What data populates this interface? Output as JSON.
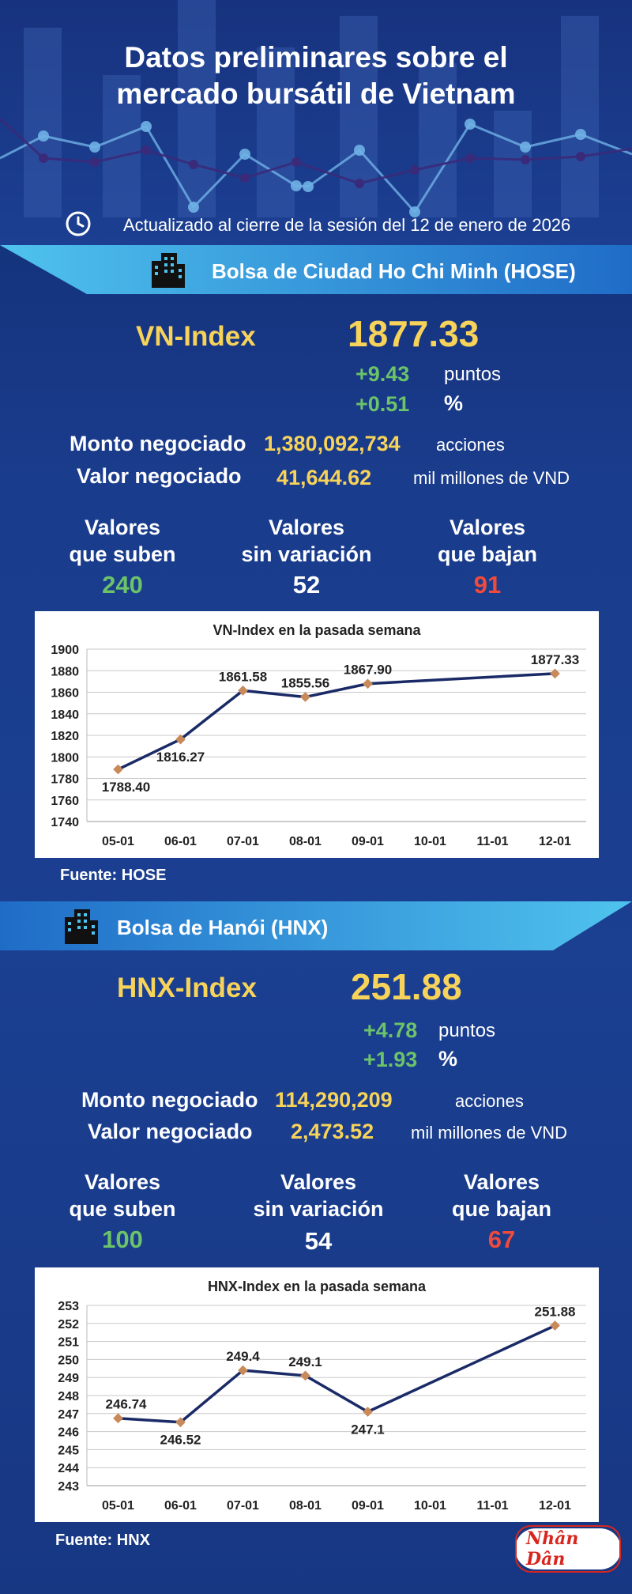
{
  "header": {
    "title_line1": "Datos preliminares sobre el",
    "title_line2": "mercado bursátil de Vietnam",
    "updated": "Actualizado al cierre de la sesión del 12 de enero de 2026"
  },
  "hose": {
    "banner": "Bolsa de Ciudad Ho Chi Minh (HOSE)",
    "index_name": "VN-Index",
    "index_value": "1877.33",
    "change_points": "+9.43",
    "points_unit": "puntos",
    "change_pct": "+0.51",
    "pct_unit": "%",
    "volume_label": "Monto negociado",
    "volume_value": "1,380,092,734",
    "volume_unit": "acciones",
    "value_label": "Valor negociado",
    "value_value": "41,644.62",
    "value_unit": "mil millones de VND",
    "up_label_1": "Valores",
    "up_label_2": "que suben",
    "up_count": "240",
    "flat_label_1": "Valores",
    "flat_label_2": "sin variación",
    "flat_count": "52",
    "down_label_1": "Valores",
    "down_label_2": "que bajan",
    "down_count": "91",
    "source": "Fuente: HOSE"
  },
  "hnx": {
    "banner": "Bolsa de Hanói (HNX)",
    "index_name": "HNX-Index",
    "index_value": "251.88",
    "change_points": "+4.78",
    "points_unit": "puntos",
    "change_pct": "+1.93",
    "pct_unit": "%",
    "volume_label": "Monto negociado",
    "volume_value": "114,290,209",
    "volume_unit": "acciones",
    "value_label": "Valor negociado",
    "value_value": "2,473.52",
    "value_unit": "mil millones de VND",
    "up_label_1": "Valores",
    "up_label_2": "que suben",
    "up_count": "100",
    "flat_label_1": "Valores",
    "flat_label_2": "sin variación",
    "flat_count": "54",
    "down_label_1": "Valores",
    "down_label_2": "que bajan",
    "down_count": "67",
    "source": "Fuente:  HNX"
  },
  "logo": {
    "text": "Nhân Dân"
  },
  "colors": {
    "accent_yellow": "#f7d35a",
    "up_green": "#6cc36a",
    "down_red": "#f04a3c",
    "line_navy": "#1a2a66",
    "marker": "#c98a5a"
  },
  "chart_data": [
    {
      "type": "line",
      "title": "VN-Index en la pasada semana",
      "categories": [
        "05-01",
        "06-01",
        "07-01",
        "08-01",
        "09-01",
        "10-01",
        "11-01",
        "12-01"
      ],
      "series": [
        {
          "values": [
            1788.4,
            1816.27,
            1861.58,
            1855.56,
            1867.9,
            null,
            null,
            1877.33
          ]
        }
      ],
      "data_labels": [
        "1788.40",
        "1816.27",
        "1861.58",
        "1855.56",
        "1867.90",
        "",
        "",
        "1877.33"
      ],
      "label_pos": [
        "below",
        "below",
        "above",
        "above",
        "above",
        "",
        "",
        "above"
      ],
      "yticks": [
        1740,
        1760,
        1780,
        1800,
        1820,
        1840,
        1860,
        1880,
        1900
      ],
      "ylim": [
        1740,
        1900
      ],
      "grid": true,
      "xlabel": "",
      "ylabel": ""
    },
    {
      "type": "line",
      "title": "HNX-Index en la pasada semana",
      "categories": [
        "05-01",
        "06-01",
        "07-01",
        "08-01",
        "09-01",
        "10-01",
        "11-01",
        "12-01"
      ],
      "series": [
        {
          "values": [
            246.74,
            246.52,
            249.4,
            249.1,
            247.1,
            null,
            null,
            251.88
          ]
        }
      ],
      "data_labels": [
        "246.74",
        "246.52",
        "249.4",
        "249.1",
        "247.1",
        "",
        "",
        "251.88"
      ],
      "label_pos": [
        "above",
        "below",
        "above",
        "above",
        "below",
        "",
        "",
        "above"
      ],
      "yticks": [
        243,
        244,
        245,
        246,
        247,
        248,
        249,
        250,
        251,
        252,
        253
      ],
      "ylim": [
        243,
        253
      ],
      "grid": true,
      "xlabel": "",
      "ylabel": ""
    }
  ]
}
